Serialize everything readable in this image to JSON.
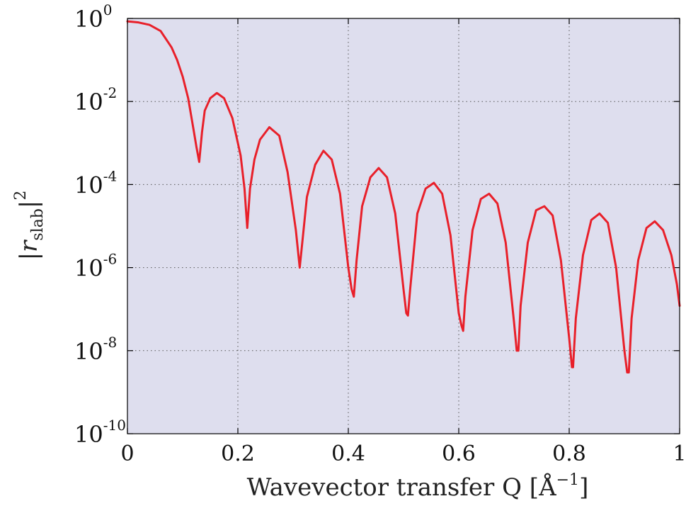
{
  "chart_data": {
    "type": "line",
    "title": "",
    "xlabel": {
      "text": "Wavevector transfer Q [",
      "unit_symbol": "Å",
      "unit_superscript": "−1",
      "close": "]"
    },
    "ylabel": {
      "bar_open": "|",
      "var": "r",
      "subscript": "slab",
      "bar_close": "|",
      "superscript": "2"
    },
    "xlim": [
      0,
      1
    ],
    "ylim": [
      1e-10,
      1
    ],
    "yscale": "log",
    "grid": true,
    "x_ticks": [
      {
        "value": 0,
        "label": "0"
      },
      {
        "value": 0.2,
        "label": "0.2"
      },
      {
        "value": 0.4,
        "label": "0.4"
      },
      {
        "value": 0.6,
        "label": "0.6"
      },
      {
        "value": 0.8,
        "label": "0.8"
      },
      {
        "value": 1.0,
        "label": "1"
      }
    ],
    "y_ticks": [
      {
        "exp": 0,
        "base": "10",
        "sup": "0"
      },
      {
        "exp": -2,
        "base": "10",
        "sup": "-2"
      },
      {
        "exp": -4,
        "base": "10",
        "sup": "-4"
      },
      {
        "exp": -6,
        "base": "10",
        "sup": "-6"
      },
      {
        "exp": -8,
        "base": "10",
        "sup": "-8"
      },
      {
        "exp": -10,
        "base": "10",
        "sup": "-10"
      }
    ],
    "series": [
      {
        "color": "#e8202a",
        "x": [
          0.0,
          0.02,
          0.04,
          0.06,
          0.08,
          0.09,
          0.1,
          0.11,
          0.12,
          0.125,
          0.13,
          0.135,
          0.14,
          0.15,
          0.162,
          0.175,
          0.19,
          0.205,
          0.212,
          0.217,
          0.222,
          0.23,
          0.24,
          0.257,
          0.275,
          0.29,
          0.305,
          0.312,
          0.318,
          0.325,
          0.34,
          0.355,
          0.37,
          0.385,
          0.4,
          0.406,
          0.41,
          0.415,
          0.425,
          0.44,
          0.455,
          0.47,
          0.485,
          0.5,
          0.505,
          0.508,
          0.512,
          0.525,
          0.54,
          0.555,
          0.57,
          0.585,
          0.6,
          0.605,
          0.608,
          0.612,
          0.625,
          0.64,
          0.655,
          0.67,
          0.685,
          0.7,
          0.705,
          0.708,
          0.712,
          0.725,
          0.74,
          0.755,
          0.77,
          0.785,
          0.8,
          0.805,
          0.807,
          0.812,
          0.825,
          0.84,
          0.855,
          0.87,
          0.885,
          0.9,
          0.905,
          0.908,
          0.913,
          0.925,
          0.94,
          0.955,
          0.97,
          0.985,
          0.995,
          1.0
        ],
        "y": [
          0.85,
          0.8,
          0.7,
          0.5,
          0.2,
          0.1,
          0.04,
          0.012,
          0.002,
          0.0008,
          0.00035,
          0.0018,
          0.006,
          0.012,
          0.016,
          0.012,
          0.004,
          0.0005,
          8e-05,
          9e-06,
          8e-05,
          0.0004,
          0.0012,
          0.0024,
          0.0015,
          0.0002,
          8e-06,
          1e-06,
          6e-06,
          5e-05,
          0.0003,
          0.00065,
          0.0004,
          6e-05,
          1e-06,
          3e-07,
          2e-07,
          1.5e-06,
          3e-05,
          0.00015,
          0.00025,
          0.00015,
          2e-05,
          3e-07,
          8e-08,
          7e-08,
          3e-07,
          2e-05,
          8e-05,
          0.00011,
          6e-05,
          6e-06,
          8e-08,
          4e-08,
          3e-08,
          2e-07,
          8e-06,
          4.5e-05,
          6e-05,
          3.5e-05,
          4e-06,
          5e-08,
          1e-08,
          1e-08,
          1.2e-07,
          4e-06,
          2.4e-05,
          3e-05,
          1.8e-05,
          1.5e-06,
          2e-08,
          4e-09,
          4e-09,
          6e-08,
          2e-06,
          1.4e-05,
          2e-05,
          1.2e-05,
          1e-06,
          1e-08,
          3e-09,
          3e-09,
          6e-08,
          1.5e-06,
          9e-06,
          1.3e-05,
          8e-06,
          2e-06,
          4e-07,
          1.2e-07
        ]
      }
    ]
  }
}
